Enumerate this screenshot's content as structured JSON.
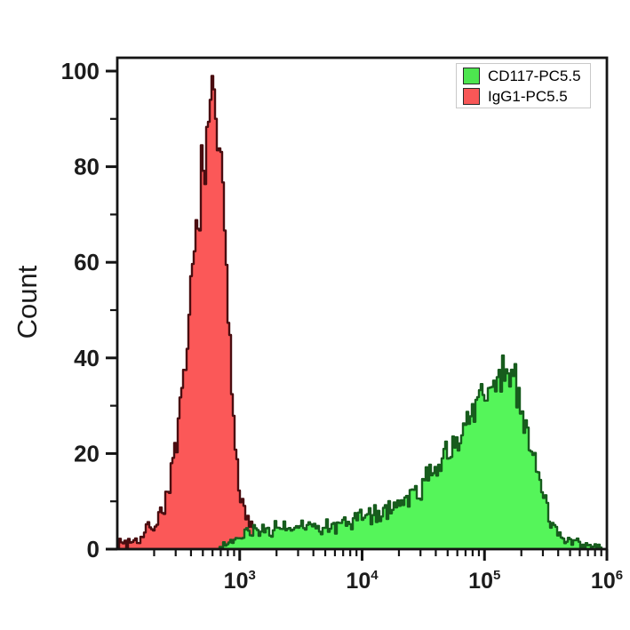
{
  "figure": {
    "ylabel": "Count",
    "background": "#ffffff",
    "frame_color": "#141414",
    "legend": {
      "items": [
        {
          "label": "CD117-PC5.5",
          "color": "#4de54f"
        },
        {
          "label": "IgG1-PC5.5",
          "color": "#f85757"
        }
      ]
    }
  },
  "chart_data": {
    "type": "area",
    "subtype": "flow-cytometry-overlay-histogram",
    "title": "",
    "xlabel": "",
    "ylabel": "Count",
    "x_axis": {
      "scale": "log10",
      "min_log": 2,
      "max_log": 6,
      "major_tick_exponents": [
        3,
        4,
        5,
        6
      ],
      "major_tick_labels": [
        "10^3",
        "10^4",
        "10^5",
        "10^6"
      ],
      "minor_tick_multiples": [
        2,
        3,
        4,
        5,
        6,
        7,
        8,
        9
      ],
      "minor_tick_decade_exponents": [
        2,
        3,
        4,
        5
      ]
    },
    "y_axis": {
      "label": "Count",
      "min": 0,
      "max": 100,
      "major_ticks": [
        0,
        20,
        40,
        60,
        80,
        100
      ],
      "minor_ticks": [
        10,
        30,
        50,
        70,
        90
      ]
    },
    "legend_position": "top-right",
    "grid": false,
    "series": [
      {
        "name": "IgG1-PC5.5",
        "data_name": "igg1-histogram",
        "fill": "#fb5858",
        "outline": "#4a0d10",
        "peak": {
          "x": 600,
          "log10_x": 2.78,
          "count": 98
        },
        "noise": 0.62,
        "seed": 7,
        "cap": 99,
        "anchors_log10x_count": [
          [
            2.0,
            0.8
          ],
          [
            2.04,
            1.8
          ],
          [
            2.07,
            1.0
          ],
          [
            2.1,
            2.2
          ],
          [
            2.13,
            1.4
          ],
          [
            2.16,
            2.6
          ],
          [
            2.19,
            2.0
          ],
          [
            2.22,
            3.2
          ],
          [
            2.25,
            4.5
          ],
          [
            2.28,
            5.5
          ],
          [
            2.31,
            5.0
          ],
          [
            2.34,
            7.0
          ],
          [
            2.37,
            9.0
          ],
          [
            2.4,
            12
          ],
          [
            2.44,
            16
          ],
          [
            2.48,
            22
          ],
          [
            2.52,
            30
          ],
          [
            2.55,
            38
          ],
          [
            2.58,
            47
          ],
          [
            2.61,
            57
          ],
          [
            2.64,
            67
          ],
          [
            2.67,
            75
          ],
          [
            2.69,
            80
          ],
          [
            2.703,
            84
          ],
          [
            2.712,
            74
          ],
          [
            2.725,
            82
          ],
          [
            2.74,
            87
          ],
          [
            2.755,
            90
          ],
          [
            2.772,
            96
          ],
          [
            2.78,
            98
          ],
          [
            2.788,
            92
          ],
          [
            2.8,
            89
          ],
          [
            2.815,
            87
          ],
          [
            2.83,
            83
          ],
          [
            2.845,
            77
          ],
          [
            2.86,
            70
          ],
          [
            2.875,
            62
          ],
          [
            2.89,
            54
          ],
          [
            2.905,
            46
          ],
          [
            2.92,
            38
          ],
          [
            2.94,
            29
          ],
          [
            2.96,
            23
          ],
          [
            2.98,
            17
          ],
          [
            3.0,
            13
          ],
          [
            3.02,
            10
          ],
          [
            3.05,
            7
          ],
          [
            3.08,
            5
          ],
          [
            3.11,
            3.5
          ],
          [
            3.14,
            2.5
          ],
          [
            3.18,
            1.5
          ],
          [
            3.22,
            1.0
          ],
          [
            3.28,
            0.5
          ],
          [
            3.35,
            0.2
          ]
        ]
      },
      {
        "name": "CD117-PC5.5",
        "data_name": "cd117-histogram",
        "fill": "#55f55a",
        "outline": "#175c1d",
        "peak": {
          "x": 130000,
          "log10_x": 5.12,
          "count": 40
        },
        "noise": 0.6,
        "seed": 23,
        "cap": 42,
        "anchors_log10x_count": [
          [
            2.82,
            0.4
          ],
          [
            2.9,
            1.2
          ],
          [
            2.95,
            1.8
          ],
          [
            3.0,
            2.4
          ],
          [
            3.05,
            2.8
          ],
          [
            3.1,
            3.2
          ],
          [
            3.15,
            3.6
          ],
          [
            3.2,
            4.0
          ],
          [
            3.25,
            4.4
          ],
          [
            3.3,
            4.8
          ],
          [
            3.35,
            4.4
          ],
          [
            3.4,
            4.8
          ],
          [
            3.45,
            4.4
          ],
          [
            3.5,
            4.2
          ],
          [
            3.55,
            4.6
          ],
          [
            3.6,
            4.9
          ],
          [
            3.65,
            4.6
          ],
          [
            3.7,
            5.0
          ],
          [
            3.75,
            5.3
          ],
          [
            3.8,
            5.5
          ],
          [
            3.85,
            5.8
          ],
          [
            3.9,
            6.0
          ],
          [
            3.95,
            6.3
          ],
          [
            4.0,
            6.6
          ],
          [
            4.05,
            7.0
          ],
          [
            4.1,
            7.4
          ],
          [
            4.15,
            7.9
          ],
          [
            4.2,
            8.4
          ],
          [
            4.25,
            9.0
          ],
          [
            4.3,
            9.7
          ],
          [
            4.35,
            10.5
          ],
          [
            4.4,
            11.5
          ],
          [
            4.45,
            12.6
          ],
          [
            4.5,
            13.8
          ],
          [
            4.55,
            15.2
          ],
          [
            4.6,
            16.8
          ],
          [
            4.65,
            18.6
          ],
          [
            4.7,
            20.5
          ],
          [
            4.75,
            22.5
          ],
          [
            4.8,
            24.7
          ],
          [
            4.85,
            27.0
          ],
          [
            4.9,
            29.5
          ],
          [
            4.95,
            31.8
          ],
          [
            5.0,
            33.6
          ],
          [
            5.05,
            35.0
          ],
          [
            5.1,
            36.0
          ],
          [
            5.15,
            37.0
          ],
          [
            5.18,
            37.5
          ],
          [
            5.22,
            35.5
          ],
          [
            5.26,
            32.5
          ],
          [
            5.3,
            28.5
          ],
          [
            5.34,
            24.5
          ],
          [
            5.38,
            20.5
          ],
          [
            5.42,
            16.5
          ],
          [
            5.46,
            12.5
          ],
          [
            5.5,
            9.0
          ],
          [
            5.54,
            6.2
          ],
          [
            5.58,
            4.0
          ],
          [
            5.62,
            2.6
          ],
          [
            5.66,
            1.8
          ],
          [
            5.72,
            1.2
          ],
          [
            5.78,
            0.8
          ],
          [
            5.85,
            0.5
          ],
          [
            5.92,
            0.3
          ],
          [
            5.98,
            0.15
          ]
        ]
      }
    ]
  }
}
